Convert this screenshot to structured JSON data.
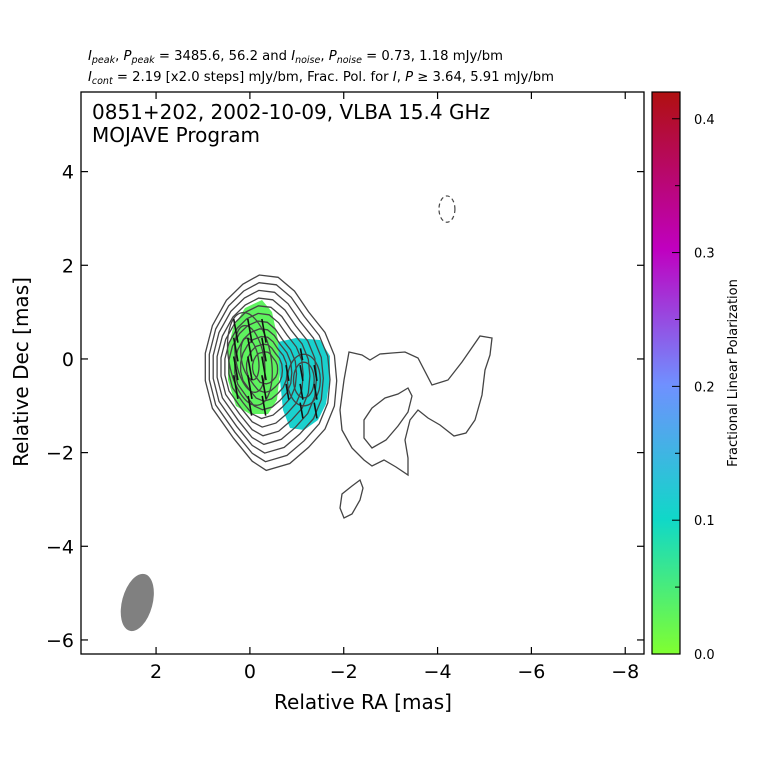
{
  "header": {
    "line1": {
      "peak_values": "3485.6, 56.2",
      "and": "and",
      "noise_values": "0.73, 1.18 mJy/bm"
    },
    "line2": {
      "cont_value": "2.19 [x2.0 steps] mJy/bm, Frac. Pol. for",
      "thresholds": "3.64, 5.91 mJy/bm"
    }
  },
  "chart_data": {
    "type": "contour-polarization-map",
    "title_line1": "0851+202, 2002-10-09, VLBA 15.4 GHz",
    "title_line2": "MOJAVE Program",
    "xlabel": "Relative RA [mas]",
    "ylabel": "Relative Dec [mas]",
    "xlim": [
      3.6,
      -8.4
    ],
    "ylim": [
      -6.3,
      5.7
    ],
    "x_ticks": [
      2,
      0,
      -2,
      -4,
      -6,
      -8
    ],
    "x_tick_labels": [
      "2",
      "0",
      "−2",
      "−4",
      "−6",
      "−8"
    ],
    "y_ticks": [
      4,
      2,
      0,
      -2,
      -4,
      -6
    ],
    "y_tick_labels": [
      "4",
      "2",
      "0",
      "−2",
      "−4",
      "−6"
    ],
    "colorbar": {
      "label": "Fractional Linear Polarization",
      "range": [
        0.0,
        0.42
      ],
      "ticks": [
        0.0,
        0.1,
        0.2,
        0.3,
        0.4
      ],
      "tick_labels": [
        "0.0",
        "0.1",
        "0.2",
        "0.3",
        "0.4"
      ],
      "colors": [
        "#80ff30",
        "#10d8c8",
        "#7090ff",
        "#c000c0",
        "#b01010"
      ]
    },
    "contour_levels": 11,
    "core_position": [
      0.0,
      0.0
    ],
    "beam": {
      "ra": 2.4,
      "dec": -5.2,
      "major": 1.25,
      "minor": 0.65,
      "pa_deg": -15
    },
    "negative_contour": {
      "ra": -4.2,
      "dec": 3.2
    },
    "polarization_patches": [
      {
        "ra": 0.0,
        "dec": -0.2,
        "fraction": 0.03
      },
      {
        "ra": -1.2,
        "dec": -0.5,
        "fraction": 0.11
      }
    ],
    "colors": {
      "contour": "#444444",
      "beam": "#808080"
    }
  }
}
